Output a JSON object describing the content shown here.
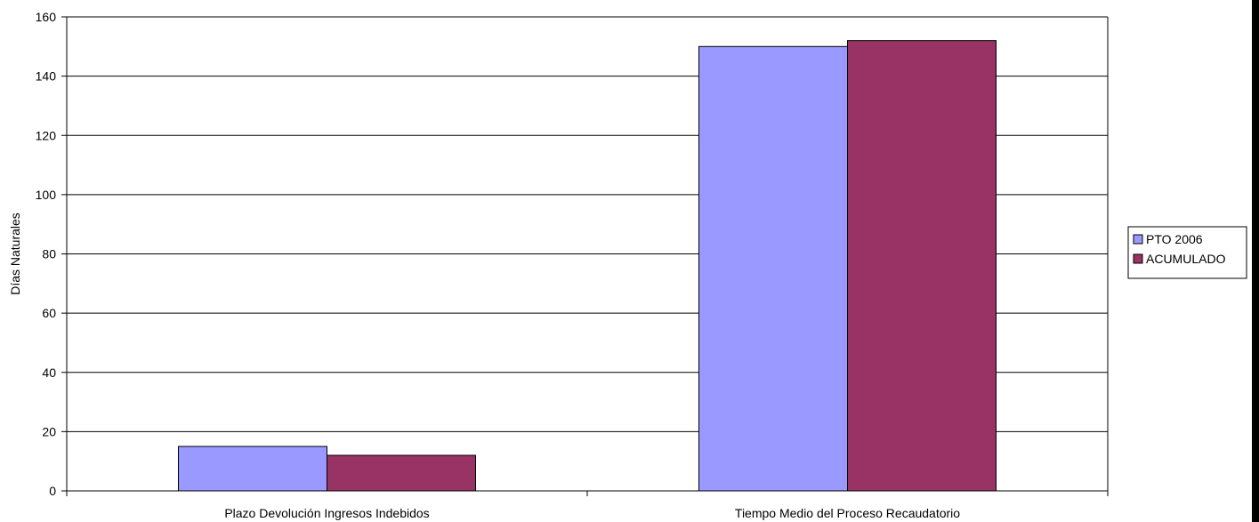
{
  "chart_data": {
    "type": "bar",
    "categories": [
      "Plazo Devolución Ingresos Indebidos",
      "Tiempo Medio del Proceso Recaudatorio"
    ],
    "series": [
      {
        "name": "PTO 2006",
        "values": [
          15,
          150
        ],
        "color": "#9999ff"
      },
      {
        "name": "ACUMULADO",
        "values": [
          12,
          152
        ],
        "color": "#993366"
      }
    ],
    "ylabel": "Días Naturales",
    "xlabel": "",
    "ylim": [
      0,
      160
    ],
    "yticks": [
      0,
      20,
      40,
      60,
      80,
      100,
      120,
      140,
      160
    ],
    "grid": true,
    "legend_position": "right"
  }
}
